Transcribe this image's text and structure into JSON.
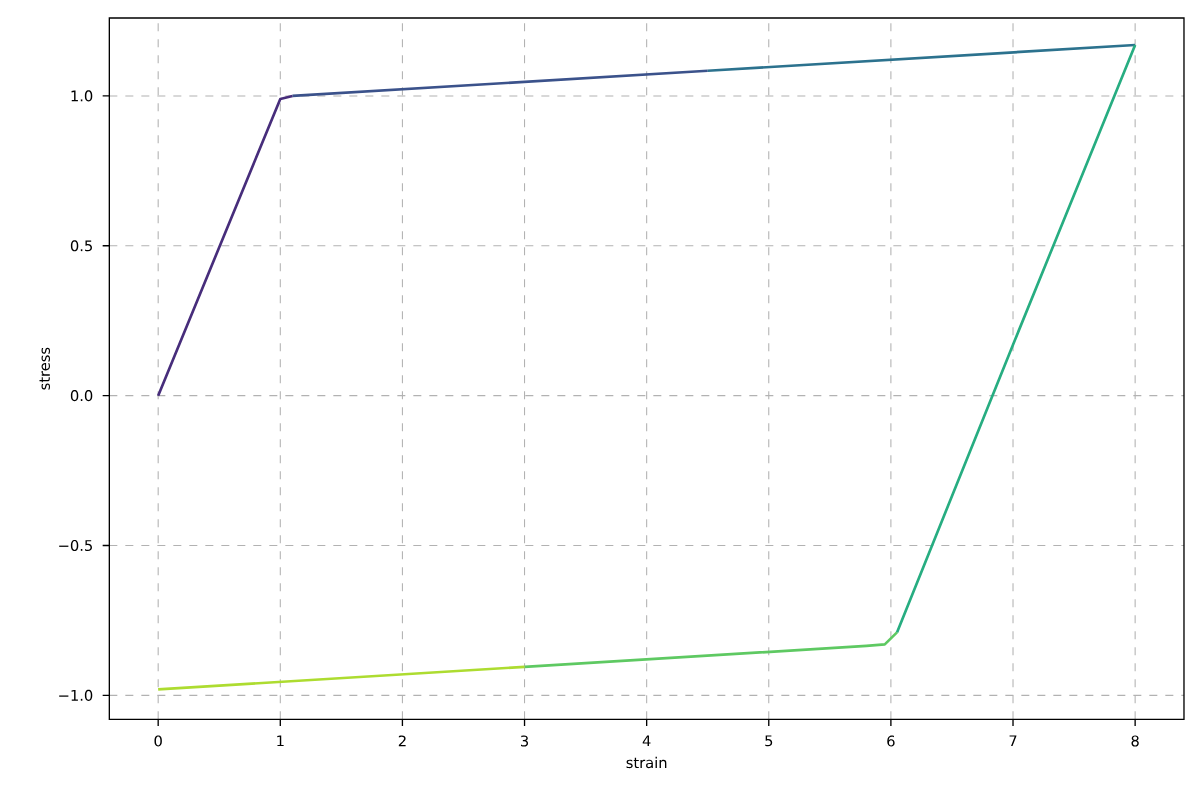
{
  "chart_data": {
    "type": "line",
    "xlabel": "strain",
    "ylabel": "stress",
    "xlim": [
      -0.4,
      8.4
    ],
    "ylim": [
      -1.08,
      1.26
    ],
    "xticks": [
      0,
      1,
      2,
      3,
      4,
      5,
      6,
      7,
      8
    ],
    "yticks": [
      {
        "value": -1.0,
        "label": "−1.0"
      },
      {
        "value": -0.5,
        "label": "−0.5"
      },
      {
        "value": 0.0,
        "label": "0.0"
      },
      {
        "value": 0.5,
        "label": "0.5"
      },
      {
        "value": 1.0,
        "label": "1.0"
      }
    ],
    "grid": true,
    "line_style": "solid",
    "series": [
      {
        "color": "#472d7b",
        "x": [
          0,
          1.0,
          1.1
        ],
        "values": [
          0,
          0.99,
          1.0
        ]
      },
      {
        "color": "#3b528b",
        "x": [
          1.1,
          4.5
        ],
        "values": [
          1.0,
          1.084
        ]
      },
      {
        "color": "#2c728e",
        "x": [
          4.5,
          8
        ],
        "values": [
          1.084,
          1.17
        ]
      },
      {
        "color": "#27ad81",
        "x": [
          8,
          7,
          6.05
        ],
        "values": [
          1.17,
          0.17,
          -0.79
        ]
      },
      {
        "color": "#5ec962",
        "x": [
          6.05,
          5.95,
          5.8,
          3
        ],
        "values": [
          -0.79,
          -0.83,
          -0.835,
          -0.905
        ]
      },
      {
        "color": "#addc30",
        "x": [
          3,
          0
        ],
        "values": [
          -0.905,
          -0.98
        ]
      }
    ]
  }
}
